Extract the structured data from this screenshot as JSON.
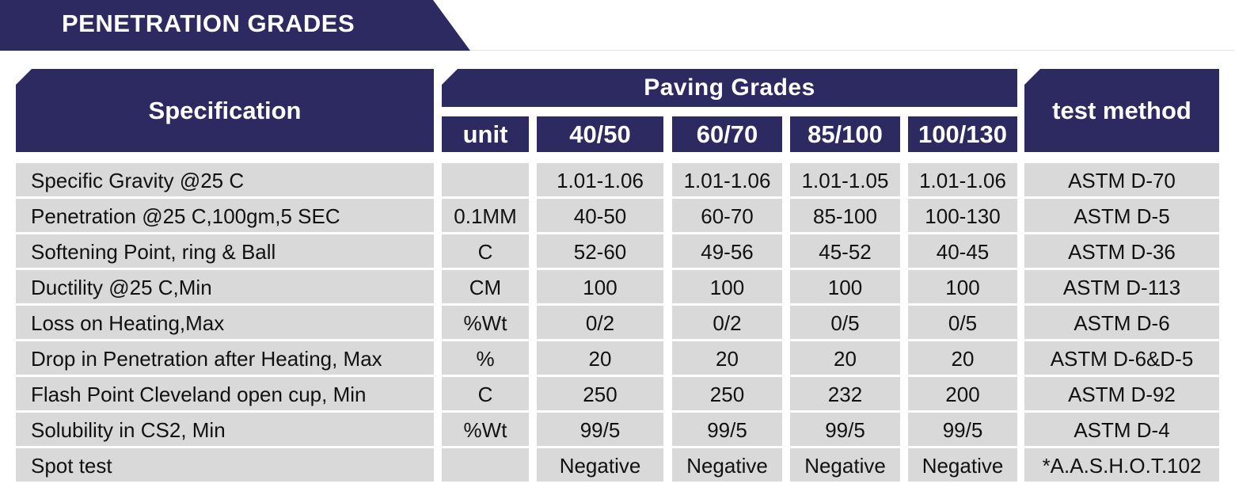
{
  "title": "PENETRATION GRADES",
  "header": {
    "specification": "Specification",
    "paving_grades": "Paving Grades",
    "test_method": "test method",
    "unit": "unit",
    "grades": [
      "40/50",
      "60/70",
      "85/100",
      "100/130"
    ]
  },
  "colors": {
    "header_bg": "#2c2a61",
    "header_text": "#ffffff",
    "cell_bg": "#d9d9d9"
  },
  "rows": [
    {
      "spec": "Specific Gravity @25 C",
      "unit": "",
      "g1": "1.01-1.06",
      "g2": "1.01-1.06",
      "g3": "1.01-1.05",
      "g4": "1.01-1.06",
      "test": "ASTM D-70"
    },
    {
      "spec": "Penetration @25 C,100gm,5 SEC",
      "unit": "0.1MM",
      "g1": "40-50",
      "g2": "60-70",
      "g3": "85-100",
      "g4": "100-130",
      "test": "ASTM D-5"
    },
    {
      "spec": "Softening Point, ring & Ball",
      "unit": "C",
      "g1": "52-60",
      "g2": "49-56",
      "g3": "45-52",
      "g4": "40-45",
      "test": "ASTM D-36"
    },
    {
      "spec": "Ductility @25 C,Min",
      "unit": "CM",
      "g1": "100",
      "g2": "100",
      "g3": "100",
      "g4": "100",
      "test": "ASTM D-113"
    },
    {
      "spec": "Loss on Heating,Max",
      "unit": "%Wt",
      "g1": "0/2",
      "g2": "0/2",
      "g3": "0/5",
      "g4": "0/5",
      "test": "ASTM D-6"
    },
    {
      "spec": "Drop in Penetration after Heating, Max",
      "unit": "%",
      "g1": "20",
      "g2": "20",
      "g3": "20",
      "g4": "20",
      "test": "ASTM D-6&D-5"
    },
    {
      "spec": "Flash Point Cleveland open cup, Min",
      "unit": "C",
      "g1": "250",
      "g2": "250",
      "g3": "232",
      "g4": "200",
      "test": "ASTM D-92"
    },
    {
      "spec": "Solubility in CS2, Min",
      "unit": "%Wt",
      "g1": "99/5",
      "g2": "99/5",
      "g3": "99/5",
      "g4": "99/5",
      "test": "ASTM D-4"
    },
    {
      "spec": "Spot test",
      "unit": "",
      "g1": "Negative",
      "g2": "Negative",
      "g3": "Negative",
      "g4": "Negative",
      "test": "*A.A.S.H.O.T.102"
    }
  ]
}
